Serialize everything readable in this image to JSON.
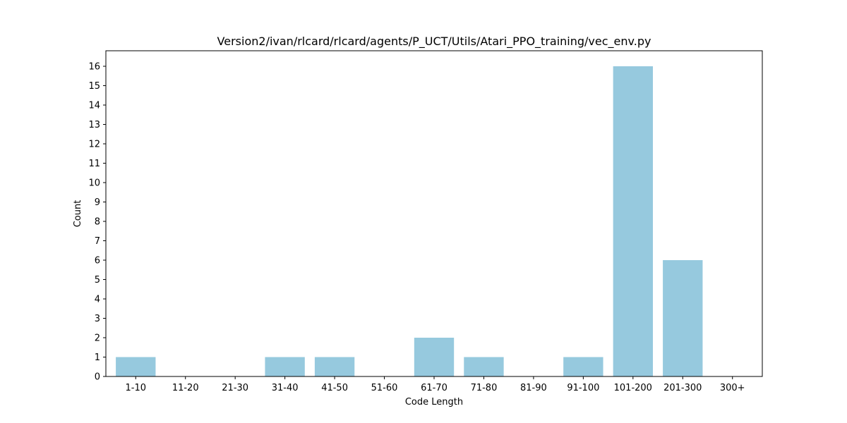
{
  "chart_data": {
    "type": "bar",
    "title": "Version2/ivan/rlcard/rlcard/agents/P_UCT/Utils/Atari_PPO_training/vec_env.py",
    "xlabel": "Code Length",
    "ylabel": "Count",
    "categories": [
      "1-10",
      "11-20",
      "21-30",
      "31-40",
      "41-50",
      "51-60",
      "61-70",
      "71-80",
      "81-90",
      "91-100",
      "101-200",
      "201-300",
      "300+"
    ],
    "values": [
      1,
      0,
      0,
      1,
      1,
      0,
      2,
      1,
      0,
      1,
      16,
      6,
      0
    ],
    "ylim": [
      0,
      16.8
    ],
    "yticks": [
      0,
      1,
      2,
      3,
      4,
      5,
      6,
      7,
      8,
      9,
      10,
      11,
      12,
      13,
      14,
      15,
      16
    ],
    "bar_color": "#96c9de",
    "grid": false,
    "legend": "none"
  }
}
